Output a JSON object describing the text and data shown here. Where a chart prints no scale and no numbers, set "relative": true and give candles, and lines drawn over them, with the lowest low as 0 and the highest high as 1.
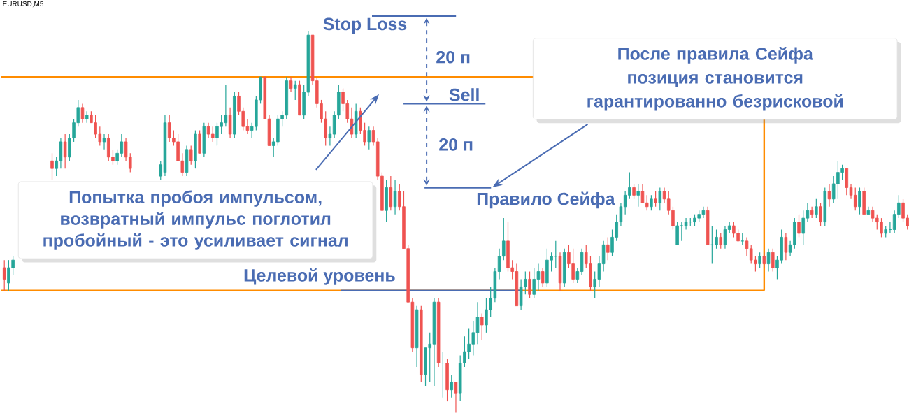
{
  "chart_data": {
    "type": "candlestick",
    "title": "EURUSD,M5",
    "relative": true,
    "colors": [
      "#ef5350",
      "#26a69a",
      "#26a69a",
      null,
      null,
      null,
      null,
      null,
      null,
      null,
      null,
      "#ef5350",
      "#26a69a",
      "#26a69a",
      "#ef5350",
      "#26a69a",
      "#26a69a",
      "#26a69a",
      "#ef5350",
      "#26a69a",
      "#ef5350",
      "#ef5350",
      "#ef5350",
      "#26a69a",
      "#ef5350",
      "#ef5350",
      "#26a69a",
      "#26a69a",
      "#ef5350",
      "#ef5350",
      null,
      null,
      null,
      null,
      null,
      null,
      "#26a69a",
      "#26a69a",
      "#ef5350",
      "#ef5350",
      "#ef5350",
      "#ef5350",
      "#26a69a",
      "#ef5350",
      "#26a69a",
      "#ef5350",
      "#26a69a",
      "#ef5350",
      "#ef5350",
      "#26a69a",
      "#26a69a",
      "#26a69a",
      "#ef5350",
      "#26a69a",
      "#ef5350",
      "#ef5350",
      "#ef5350",
      "#26a69a",
      "#26a69a",
      "#26a69a",
      "#ef5350",
      "#ef5350",
      "#26a69a",
      "#26a69a",
      "#26a69a",
      "#26a69a",
      "#ef5350",
      "#26a69a",
      "#ef5350",
      "#26a69a",
      "#26a69a",
      "#ef5350",
      "#ef5350",
      "#ef5350",
      "#ef5350",
      "#26a69a",
      "#26a69a",
      "#26a69a",
      "#ef5350",
      "#ef5350",
      "#ef5350",
      "#26a69a",
      "#ef5350",
      "#ef5350",
      "#26a69a",
      "#ef5350",
      "#ef5350",
      "#ef5350",
      "#26a69a",
      "#ef5350",
      "#26a69a",
      "#ef5350",
      "#ef5350",
      "#ef5350",
      "#ef5350",
      "#26a69a",
      "#ef5350",
      "#26a69a",
      "#26a69a",
      "#26a69a",
      "#ef5350",
      "#26a69a",
      "#ef5350",
      "#26a69a",
      "#ef5350",
      "#26a69a",
      "#26a69a",
      "#26a69a",
      "#26a69a",
      "#26a69a",
      "#ef5350",
      "#26a69a",
      "#26a69a",
      "#26a69a",
      "#26a69a",
      "#26a69a",
      "#ef5350",
      "#ef5350",
      "#ef5350",
      "#26a69a",
      "#26a69a",
      "#ef5350",
      "#26a69a",
      "#26a69a",
      "#ef5350",
      "#26a69a",
      "#26a69a",
      "#26a69a",
      "#ef5350",
      "#26a69a",
      "#ef5350",
      "#ef5350",
      "#26a69a",
      "#26a69a",
      "#ef5350",
      "#ef5350",
      "#26a69a",
      "#26a69a",
      "#26a69a",
      "#ef5350",
      "#26a69a",
      "#26a69a",
      "#26a69a",
      "#26a69a",
      "#26a69a",
      "#ef5350",
      "#26a69a",
      "#ef5350",
      "#ef5350",
      "#26a69a",
      "#ef5350",
      "#26a69a",
      "#ef5350",
      "#ef5350",
      "#ef5350",
      "#26a69a",
      "#26a69a",
      "#26a69a",
      "#26a69a",
      "#26a69a",
      "#26a69a",
      "#26a69a",
      "#ef5350",
      "#26a69a",
      "#26a69a",
      "#ef5350",
      "#26a69a",
      "#26a69a",
      "#ef5350",
      "#ef5350",
      "#26a69a",
      "#ef5350",
      "#ef5350",
      "#ef5350",
      "#26a69a",
      "#ef5350",
      "#26a69a",
      "#ef5350",
      "#26a69a",
      "#26a69a",
      "#ef5350",
      "#26a69a",
      "#26a69a",
      "#ef5350",
      "#26a69a",
      "#26a69a",
      "#ef5350",
      "#26a69a",
      "#ef5350",
      "#26a69a",
      "#ef5350",
      "#26a69a",
      "#26a69a",
      "#26a69a",
      "#ef5350",
      "#ef5350",
      "#ef5350",
      "#26a69a",
      "#ef5350",
      "#26a69a",
      "#ef5350",
      "#ef5350",
      "#ef5350",
      "#26a69a",
      "#26a69a",
      "#26a69a",
      "#26a69a",
      "#ef5350",
      "#ef5350"
    ],
    "categories": [
      null,
      null,
      null,
      null,
      null,
      null,
      null,
      null,
      null,
      null,
      null,
      null,
      null,
      null,
      null,
      null,
      null,
      null,
      null,
      null,
      null,
      null,
      null,
      null,
      null,
      null,
      null,
      null,
      null,
      null,
      null,
      null,
      null,
      null,
      null,
      null,
      null,
      null,
      null,
      null,
      null,
      null,
      null,
      null,
      null,
      null,
      null,
      null,
      null,
      null,
      null,
      null,
      null,
      null,
      null,
      null,
      null,
      null,
      null,
      null,
      null,
      null,
      null,
      null,
      null,
      null,
      null,
      null,
      null,
      null,
      null,
      null,
      null,
      null,
      null,
      null,
      null,
      null,
      null,
      null,
      null,
      null,
      null,
      null,
      null,
      null,
      null,
      null,
      null,
      null,
      null,
      null,
      null,
      null,
      null,
      null,
      null,
      null,
      null,
      null,
      null,
      null,
      null,
      null,
      null,
      null,
      null,
      null,
      null,
      null,
      null,
      null,
      null,
      null,
      null,
      null,
      null,
      null,
      null,
      null,
      null,
      null,
      null,
      null,
      null,
      null,
      null,
      null,
      null,
      null,
      null,
      null,
      null,
      null,
      null,
      null,
      null,
      null,
      null,
      null,
      null,
      null,
      null,
      null,
      null,
      null,
      null,
      null,
      null,
      null,
      null,
      null,
      null,
      null,
      null,
      null,
      null,
      null,
      null,
      null,
      null,
      null,
      null,
      null,
      null,
      null,
      null,
      null,
      null,
      null,
      null,
      null,
      null,
      null,
      null,
      null,
      null,
      null,
      null,
      null,
      null,
      null,
      null,
      null,
      null,
      null,
      null,
      null,
      null,
      null,
      null,
      null,
      null,
      null,
      null,
      null,
      null,
      null,
      null,
      null,
      null,
      null,
      null,
      null,
      null,
      null,
      null,
      null,
      null
    ],
    "ohlc": [
      [
        0.38,
        0.4,
        0.32,
        0.35
      ],
      [
        0.34,
        0.4,
        0.32,
        0.38
      ],
      [
        0.38,
        0.41,
        0.36,
        0.4
      ],
      null,
      null,
      null,
      null,
      null,
      null,
      null,
      null,
      [
        0.66,
        0.68,
        0.61,
        0.64
      ],
      [
        0.64,
        0.67,
        0.62,
        0.66
      ],
      [
        0.66,
        0.72,
        0.64,
        0.71
      ],
      [
        0.71,
        0.73,
        0.64,
        0.67
      ],
      [
        0.67,
        0.73,
        0.66,
        0.72
      ],
      [
        0.72,
        0.77,
        0.71,
        0.76
      ],
      [
        0.76,
        0.82,
        0.75,
        0.8
      ],
      [
        0.8,
        0.81,
        0.76,
        0.77
      ],
      [
        0.77,
        0.79,
        0.76,
        0.78
      ],
      [
        0.78,
        0.79,
        0.76,
        0.76
      ],
      [
        0.76,
        0.78,
        0.72,
        0.73
      ],
      [
        0.73,
        0.75,
        0.7,
        0.71
      ],
      [
        0.71,
        0.73,
        0.69,
        0.72
      ],
      [
        0.72,
        0.73,
        0.66,
        0.67
      ],
      [
        0.67,
        0.69,
        0.65,
        0.66
      ],
      [
        0.66,
        0.69,
        0.65,
        0.68
      ],
      [
        0.68,
        0.73,
        0.67,
        0.71
      ],
      [
        0.71,
        0.72,
        0.66,
        0.67
      ],
      [
        0.67,
        0.68,
        0.63,
        0.64
      ],
      null,
      null,
      null,
      null,
      null,
      null,
      [
        0.62,
        0.66,
        0.61,
        0.65
      ],
      [
        0.63,
        0.78,
        0.62,
        0.76
      ],
      [
        0.76,
        0.78,
        0.71,
        0.72
      ],
      [
        0.72,
        0.74,
        0.7,
        0.71
      ],
      [
        0.71,
        0.73,
        0.66,
        0.66
      ],
      [
        0.66,
        0.68,
        0.62,
        0.63
      ],
      [
        0.63,
        0.7,
        0.62,
        0.69
      ],
      [
        0.69,
        0.7,
        0.65,
        0.66
      ],
      [
        0.66,
        0.74,
        0.64,
        0.73
      ],
      [
        0.73,
        0.74,
        0.68,
        0.68
      ],
      [
        0.68,
        0.76,
        0.67,
        0.75
      ],
      [
        0.75,
        0.76,
        0.72,
        0.73
      ],
      [
        0.73,
        0.75,
        0.71,
        0.72
      ],
      [
        0.72,
        0.76,
        0.7,
        0.75
      ],
      [
        0.75,
        0.78,
        0.73,
        0.76
      ],
      [
        0.76,
        0.86,
        0.75,
        0.78
      ],
      [
        0.78,
        0.8,
        0.72,
        0.73
      ],
      [
        0.73,
        0.84,
        0.72,
        0.83
      ],
      [
        0.83,
        0.84,
        0.78,
        0.79
      ],
      [
        0.79,
        0.8,
        0.74,
        0.75
      ],
      [
        0.75,
        0.77,
        0.73,
        0.74
      ],
      [
        0.74,
        0.76,
        0.72,
        0.75
      ],
      [
        0.75,
        0.83,
        0.74,
        0.82
      ],
      [
        0.82,
        0.88,
        0.81,
        0.88
      ],
      [
        0.88,
        0.88,
        0.77,
        0.77
      ],
      [
        0.77,
        0.78,
        0.7,
        0.7
      ],
      [
        0.7,
        0.72,
        0.67,
        0.71
      ],
      [
        0.71,
        0.78,
        0.7,
        0.77
      ],
      [
        0.77,
        0.79,
        0.75,
        0.78
      ],
      [
        0.78,
        0.88,
        0.77,
        0.87
      ],
      [
        0.87,
        0.88,
        0.84,
        0.85
      ],
      [
        0.85,
        0.87,
        0.82,
        0.86
      ],
      [
        0.86,
        0.87,
        0.78,
        0.78
      ],
      [
        0.78,
        0.86,
        0.77,
        0.84
      ],
      [
        0.84,
        1.0,
        0.83,
        0.99
      ],
      [
        0.99,
        0.99,
        0.86,
        0.87
      ],
      [
        0.87,
        0.88,
        0.8,
        0.81
      ],
      [
        0.81,
        0.82,
        0.76,
        0.77
      ],
      [
        0.77,
        0.79,
        0.7,
        0.72
      ],
      [
        0.72,
        0.75,
        0.7,
        0.73
      ],
      [
        0.73,
        0.79,
        0.72,
        0.78
      ],
      [
        0.78,
        0.86,
        0.77,
        0.84
      ],
      [
        0.84,
        0.85,
        0.79,
        0.81
      ],
      [
        0.81,
        0.82,
        0.76,
        0.77
      ],
      [
        0.77,
        0.8,
        0.72,
        0.73
      ],
      [
        0.73,
        0.81,
        0.72,
        0.79
      ],
      [
        0.79,
        0.8,
        0.73,
        0.74
      ],
      [
        0.74,
        0.76,
        0.7,
        0.71
      ],
      [
        0.71,
        0.75,
        0.69,
        0.74
      ],
      [
        0.74,
        0.75,
        0.7,
        0.71
      ],
      [
        0.71,
        0.72,
        0.61,
        0.62
      ],
      [
        0.62,
        0.63,
        0.53,
        0.53
      ],
      [
        0.53,
        0.61,
        0.5,
        0.59
      ],
      [
        0.59,
        0.62,
        0.53,
        0.54
      ],
      [
        0.54,
        0.61,
        0.52,
        0.58
      ],
      [
        0.58,
        0.6,
        0.53,
        0.54
      ],
      [
        0.54,
        0.58,
        0.43,
        0.43
      ],
      [
        0.43,
        0.44,
        0.29,
        0.29
      ],
      [
        0.29,
        0.3,
        0.16,
        0.17
      ],
      [
        0.17,
        0.28,
        0.12,
        0.27
      ],
      [
        0.27,
        0.28,
        0.08,
        0.1
      ],
      [
        0.1,
        0.17,
        0.07,
        0.17
      ],
      [
        0.17,
        0.21,
        0.08,
        0.18
      ],
      [
        0.18,
        0.3,
        0.07,
        0.29
      ],
      [
        0.29,
        0.3,
        0.12,
        0.13
      ],
      [
        0.13,
        0.16,
        0.04,
        0.13
      ],
      [
        0.13,
        0.14,
        0.03,
        0.06
      ],
      [
        0.06,
        0.1,
        0.04,
        0.08
      ],
      [
        0.08,
        0.08,
        0.0,
        0.05
      ],
      [
        0.05,
        0.15,
        0.03,
        0.13
      ],
      [
        0.13,
        0.2,
        0.12,
        0.16
      ],
      [
        0.16,
        0.22,
        0.14,
        0.18
      ],
      [
        0.18,
        0.24,
        0.15,
        0.21
      ],
      [
        0.21,
        0.29,
        0.18,
        0.25
      ],
      [
        0.25,
        0.26,
        0.19,
        0.23
      ],
      [
        0.23,
        0.3,
        0.21,
        0.27
      ],
      [
        0.27,
        0.33,
        0.25,
        0.3
      ],
      [
        0.3,
        0.38,
        0.29,
        0.37
      ],
      [
        0.37,
        0.43,
        0.35,
        0.41
      ],
      [
        0.41,
        0.51,
        0.4,
        0.45
      ],
      [
        0.45,
        0.5,
        0.37,
        0.38
      ],
      [
        0.38,
        0.4,
        0.35,
        0.37
      ],
      [
        0.37,
        0.39,
        0.28,
        0.28
      ],
      [
        0.28,
        0.35,
        0.27,
        0.33
      ],
      [
        0.33,
        0.37,
        0.31,
        0.35
      ],
      [
        0.35,
        0.37,
        0.3,
        0.31
      ],
      [
        0.31,
        0.38,
        0.3,
        0.35
      ],
      [
        0.35,
        0.39,
        0.32,
        0.37
      ],
      [
        0.37,
        0.38,
        0.33,
        0.34
      ],
      [
        0.34,
        0.43,
        0.33,
        0.4
      ],
      [
        0.4,
        0.42,
        0.37,
        0.41
      ],
      [
        0.41,
        0.45,
        0.38,
        0.41
      ],
      [
        0.41,
        0.42,
        0.32,
        0.34
      ],
      [
        0.34,
        0.43,
        0.33,
        0.42
      ],
      [
        0.42,
        0.44,
        0.38,
        0.39
      ],
      [
        0.39,
        0.43,
        0.34,
        0.35
      ],
      [
        0.35,
        0.38,
        0.34,
        0.37
      ],
      [
        0.37,
        0.43,
        0.36,
        0.42
      ],
      [
        0.42,
        0.44,
        0.38,
        0.39
      ],
      [
        0.39,
        0.41,
        0.32,
        0.33
      ],
      [
        0.33,
        0.37,
        0.3,
        0.35
      ],
      [
        0.35,
        0.41,
        0.33,
        0.39
      ],
      [
        0.39,
        0.45,
        0.37,
        0.44
      ],
      [
        0.44,
        0.46,
        0.4,
        0.42
      ],
      [
        0.42,
        0.48,
        0.41,
        0.46
      ],
      [
        0.46,
        0.52,
        0.45,
        0.5
      ],
      [
        0.5,
        0.55,
        0.49,
        0.54
      ],
      [
        0.54,
        0.58,
        0.52,
        0.57
      ],
      [
        0.57,
        0.63,
        0.56,
        0.59
      ],
      [
        0.59,
        0.6,
        0.56,
        0.57
      ],
      [
        0.57,
        0.6,
        0.54,
        0.58
      ],
      [
        0.58,
        0.6,
        0.55,
        0.55
      ],
      [
        0.55,
        0.57,
        0.53,
        0.54
      ],
      [
        0.54,
        0.57,
        0.53,
        0.56
      ],
      [
        0.56,
        0.58,
        0.54,
        0.55
      ],
      [
        0.55,
        0.59,
        0.53,
        0.58
      ],
      [
        0.58,
        0.59,
        0.55,
        0.56
      ],
      [
        0.56,
        0.58,
        0.52,
        0.53
      ],
      [
        0.53,
        0.54,
        0.48,
        0.49
      ],
      [
        0.44,
        0.5,
        0.44,
        0.49
      ],
      [
        0.49,
        0.5,
        0.45,
        0.49
      ],
      [
        0.49,
        0.51,
        0.48,
        0.5
      ],
      [
        0.5,
        0.51,
        0.49,
        0.5
      ],
      [
        0.5,
        0.52,
        0.49,
        0.51
      ],
      [
        0.51,
        0.53,
        0.5,
        0.52
      ],
      [
        0.52,
        0.54,
        0.51,
        0.53
      ],
      [
        0.53,
        0.54,
        0.44,
        0.44
      ],
      [
        0.44,
        0.49,
        0.39,
        0.44
      ],
      [
        0.44,
        0.48,
        0.43,
        0.46
      ],
      [
        0.46,
        0.47,
        0.43,
        0.44
      ],
      [
        0.44,
        0.49,
        0.43,
        0.48
      ],
      [
        0.48,
        0.5,
        0.47,
        0.49
      ],
      [
        0.49,
        0.5,
        0.46,
        0.47
      ],
      [
        0.47,
        0.48,
        0.45,
        0.45
      ],
      [
        0.45,
        0.47,
        0.44,
        0.45
      ],
      [
        0.45,
        0.46,
        0.41,
        0.43
      ],
      [
        0.43,
        0.44,
        0.39,
        0.4
      ],
      [
        0.4,
        0.41,
        0.37,
        0.39
      ],
      [
        0.39,
        0.42,
        0.38,
        0.41
      ],
      [
        0.41,
        0.42,
        0.38,
        0.39
      ],
      [
        0.39,
        0.43,
        0.37,
        0.42
      ],
      [
        0.42,
        0.43,
        0.37,
        0.38
      ],
      [
        0.38,
        0.41,
        0.35,
        0.4
      ],
      [
        0.4,
        0.48,
        0.39,
        0.46
      ],
      [
        0.46,
        0.47,
        0.4,
        0.42
      ],
      [
        0.42,
        0.45,
        0.41,
        0.44
      ],
      [
        0.44,
        0.51,
        0.43,
        0.5
      ],
      [
        0.5,
        0.52,
        0.46,
        0.47
      ],
      [
        0.47,
        0.53,
        0.44,
        0.51
      ],
      [
        0.51,
        0.55,
        0.5,
        0.53
      ],
      [
        0.53,
        0.54,
        0.51,
        0.52
      ],
      [
        0.52,
        0.56,
        0.51,
        0.54
      ],
      [
        0.54,
        0.55,
        0.49,
        0.5
      ],
      [
        0.5,
        0.59,
        0.49,
        0.58
      ],
      [
        0.58,
        0.6,
        0.54,
        0.56
      ],
      [
        0.56,
        0.62,
        0.55,
        0.6
      ],
      [
        0.6,
        0.66,
        0.56,
        0.63
      ],
      [
        0.63,
        0.65,
        0.61,
        0.64
      ],
      [
        0.64,
        0.64,
        0.57,
        0.59
      ],
      [
        0.59,
        0.6,
        0.56,
        0.57
      ],
      [
        0.57,
        0.59,
        0.53,
        0.54
      ],
      [
        0.54,
        0.59,
        0.52,
        0.58
      ],
      [
        0.58,
        0.59,
        0.52,
        0.52
      ],
      [
        0.52,
        0.54,
        0.52,
        0.53
      ],
      [
        0.53,
        0.54,
        0.5,
        0.51
      ],
      [
        0.51,
        0.52,
        0.48,
        0.5
      ],
      [
        0.5,
        0.51,
        0.46,
        0.47
      ],
      [
        0.47,
        0.49,
        0.46,
        0.48
      ],
      [
        0.48,
        0.5,
        0.47,
        0.48
      ],
      [
        0.48,
        0.53,
        0.47,
        0.52
      ],
      [
        0.52,
        0.57,
        0.51,
        0.55
      ],
      [
        0.55,
        0.56,
        0.5,
        0.51
      ],
      [
        0.51,
        0.52,
        0.48,
        0.49
      ]
    ],
    "ref_lines": [
      {
        "axis": "y",
        "value": 1.04,
        "label": "Stop Loss",
        "color": "#4a6cb3"
      },
      {
        "axis": "y",
        "value": 0.81,
        "label": "Sell",
        "color": "#4a6cb3"
      },
      {
        "axis": "y",
        "value": 0.59,
        "label": "Правило Сейфа",
        "color": "#4a6cb3"
      },
      {
        "axis": "y",
        "value": 0.32,
        "label": "Целевой уровень",
        "color": "#4a6cb3"
      },
      {
        "axis": "y",
        "value": 0.88,
        "color": "#ff8c00"
      },
      {
        "axis": "y",
        "value": 0.32,
        "color": "#ff8c00"
      }
    ],
    "annotations": [
      "20 п",
      "20 п",
      "После правила Сейфа позиция становится гарантированно безрисковой",
      "Попытка пробоя импульсом, возвратный импульс поглотил пробойный - это усиливает сигнал"
    ]
  }
}
